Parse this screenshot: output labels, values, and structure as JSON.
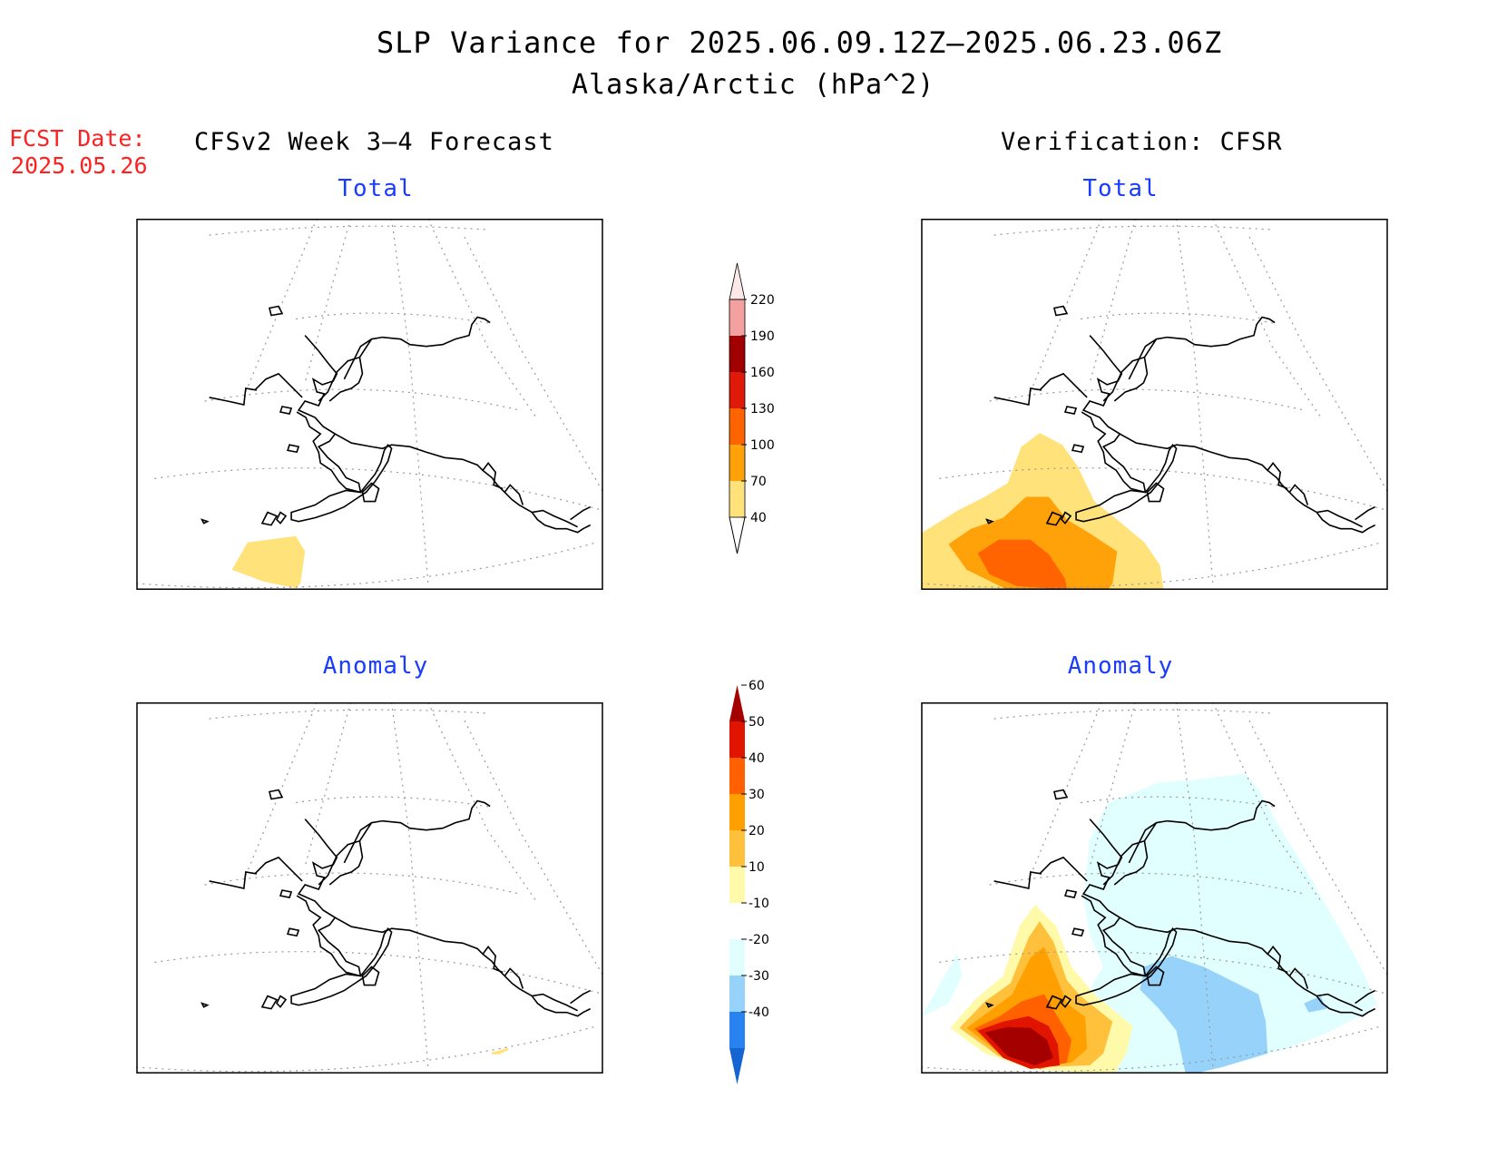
{
  "header": {
    "title": "SLP Variance for 2025.06.09.12Z—2025.06.23.06Z",
    "subtitle": "Alaska/Arctic (hPa^2)"
  },
  "fcst": {
    "line1": "FCST Date:",
    "line2": "2025.05.26"
  },
  "columns": {
    "left": "CFSv2 Week 3—4 Forecast",
    "right": "Verification: CFSR"
  },
  "panels": {
    "top_left": "Total",
    "top_right": "Total",
    "bottom_left": "Anomaly",
    "bottom_right": "Anomaly"
  },
  "colorbars": {
    "total": {
      "labels": [
        "40",
        "70",
        "100",
        "130",
        "160",
        "190",
        "220"
      ],
      "colors": [
        "#ffe27a",
        "#ffa20a",
        "#ff6400",
        "#e01a0a",
        "#a00000",
        "#f2a0a0",
        "#fde8e8"
      ]
    },
    "anomaly": {
      "labels": [
        "-40",
        "-30",
        "-20",
        "-10",
        "10",
        "20",
        "30",
        "40",
        "50",
        "60"
      ],
      "colors": [
        "#1464d2",
        "#2882f0",
        "#96d2fa",
        "#e1ffff",
        "#ffffff",
        "#fffaaa",
        "#ffc03c",
        "#ffa000",
        "#ff6000",
        "#e11400",
        "#a50000"
      ]
    }
  }
}
